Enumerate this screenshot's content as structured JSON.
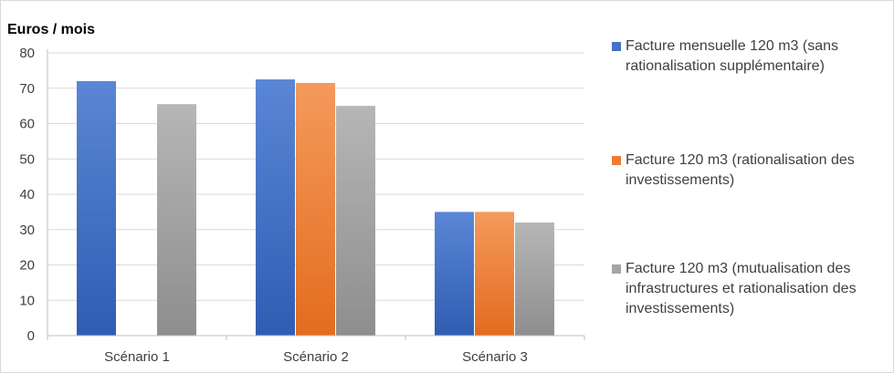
{
  "chart_data": {
    "type": "bar",
    "title": "Euros / mois",
    "categories": [
      "Scénario 1",
      "Scénario 2",
      "Scénario 3"
    ],
    "series": [
      {
        "name": "Facture mensuelle 120 m3 (sans rationalisation supplémentaire)",
        "values": [
          72,
          72.5,
          35
        ],
        "color": "#4472c4"
      },
      {
        "name": "Facture 120 m3 (rationalisation des investissements)",
        "values": [
          null,
          71.5,
          35
        ],
        "color": "#ed7d31"
      },
      {
        "name": "Facture 120 m3 (mutualisation des infrastructures et rationalisation des investissements)",
        "values": [
          65.5,
          65,
          32
        ],
        "color": "#a5a5a5"
      }
    ],
    "yticks": [
      0,
      10,
      20,
      30,
      40,
      50,
      60,
      70,
      80
    ],
    "ylim": [
      0,
      80
    ],
    "grid": true,
    "legend_position": "right"
  }
}
